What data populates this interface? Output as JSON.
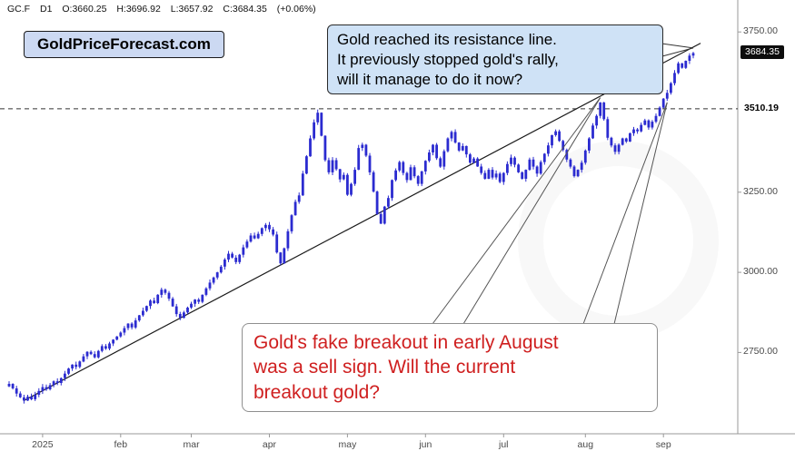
{
  "header": {
    "symbol": "GC.F",
    "timeframe": "D1",
    "open": "O:3660.25",
    "high": "H:3696.92",
    "low": "L:3657.92",
    "close": "C:3684.35",
    "change": "(+0.06%)"
  },
  "branding": {
    "label": "GoldPriceForecast.com"
  },
  "annotations": {
    "resistance_note": {
      "lines": [
        "Gold reached its resistance line.",
        "It previously stopped gold's rally,",
        "will it manage to do it now?"
      ]
    },
    "breakout_note": {
      "lines": [
        "Gold's fake breakout in early August",
        "was a sell sign. Will the current",
        "breakout gold?"
      ]
    }
  },
  "price_axis": {
    "current_price": "3684.35",
    "level_price": "3510.19"
  },
  "chart_data": {
    "type": "candlestick",
    "symbol": "GC.F",
    "timeframe": "D1",
    "title": "Gold futures daily chart, Dec 2024 - Sep 2025",
    "last": {
      "open": 3660.25,
      "high": 3696.92,
      "low": 3657.92,
      "close": 3684.35,
      "change_pct": 0.06
    },
    "ylim": [
      2570,
      3810
    ],
    "y_ticks": [
      {
        "value": 3750,
        "label": "3750.00"
      },
      {
        "value": 3250,
        "label": "3250.00"
      },
      {
        "value": 3000,
        "label": "3000.00"
      },
      {
        "value": 2750,
        "label": "2750.00"
      }
    ],
    "dashed_level": {
      "value": 3510.19,
      "label": "3510.19"
    },
    "months": [
      {
        "label": "2025",
        "index": 9
      },
      {
        "label": "feb",
        "index": 30
      },
      {
        "label": "mar",
        "index": 49
      },
      {
        "label": "apr",
        "index": 70
      },
      {
        "label": "may",
        "index": 91
      },
      {
        "label": "jun",
        "index": 112
      },
      {
        "label": "jul",
        "index": 133
      },
      {
        "label": "aug",
        "index": 155
      },
      {
        "label": "sep",
        "index": 176
      }
    ],
    "closes": [
      2652,
      2638,
      2622,
      2610,
      2600,
      2612,
      2604,
      2618,
      2630,
      2642,
      2635,
      2648,
      2660,
      2655,
      2670,
      2684,
      2700,
      2712,
      2705,
      2722,
      2738,
      2752,
      2745,
      2735,
      2755,
      2770,
      2762,
      2778,
      2790,
      2800,
      2812,
      2826,
      2840,
      2828,
      2850,
      2866,
      2880,
      2895,
      2912,
      2904,
      2930,
      2946,
      2936,
      2918,
      2894,
      2870,
      2858,
      2875,
      2890,
      2902,
      2915,
      2908,
      2930,
      2950,
      2968,
      2984,
      3000,
      3018,
      3040,
      3058,
      3046,
      3032,
      3055,
      3078,
      3096,
      3115,
      3106,
      3120,
      3138,
      3148,
      3134,
      3118,
      3062,
      3028,
      3075,
      3128,
      3178,
      3220,
      3240,
      3308,
      3362,
      3418,
      3468,
      3498,
      3426,
      3350,
      3312,
      3350,
      3322,
      3290,
      3304,
      3242,
      3276,
      3320,
      3388,
      3398,
      3364,
      3312,
      3252,
      3182,
      3152,
      3205,
      3232,
      3288,
      3318,
      3344,
      3310,
      3288,
      3328,
      3300,
      3276,
      3315,
      3348,
      3374,
      3398,
      3356,
      3330,
      3378,
      3418,
      3438,
      3405,
      3380,
      3394,
      3368,
      3342,
      3355,
      3330,
      3310,
      3292,
      3320,
      3296,
      3308,
      3282,
      3310,
      3338,
      3358,
      3336,
      3312,
      3292,
      3320,
      3352,
      3330,
      3308,
      3344,
      3370,
      3396,
      3428,
      3440,
      3410,
      3382,
      3352,
      3330,
      3300,
      3320,
      3342,
      3380,
      3418,
      3458,
      3488,
      3530,
      3478,
      3420,
      3396,
      3376,
      3398,
      3418,
      3408,
      3434,
      3446,
      3440,
      3460,
      3474,
      3452,
      3470,
      3488,
      3514,
      3542,
      3560,
      3590,
      3622,
      3652,
      3638,
      3660,
      3676,
      3684
    ],
    "trendline": {
      "start": {
        "index": 4,
        "price": 2600
      },
      "end": {
        "index": 186,
        "price": 3715
      }
    },
    "callout_targets": {
      "resistance": {
        "index": 184,
        "price": 3700
      },
      "fake_breakout": {
        "index": 159,
        "price": 3545
      },
      "current_breakout": {
        "index": 177,
        "price": 3530
      }
    },
    "candle_color": "#2b2bd0",
    "wick_amplitude": 9
  }
}
